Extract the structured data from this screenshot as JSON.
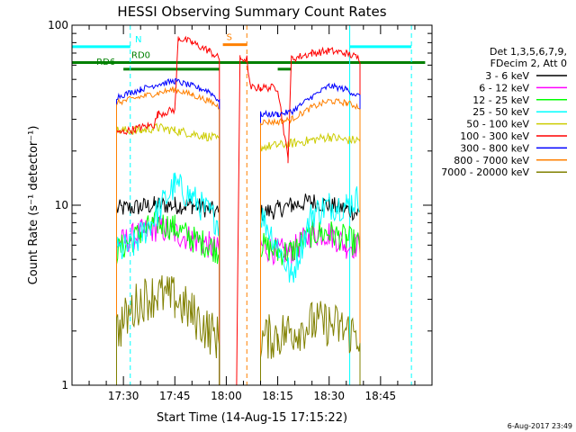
{
  "chart_data": {
    "type": "line",
    "title": "HESSI Observing Summary Count Rates",
    "xlabel": "Start Time (14-Aug-15 17:15:22)",
    "ylabel": "Count Rate (s⁻¹ detector⁻¹)",
    "y_scale": "log",
    "ylim": [
      1,
      100
    ],
    "xlim_minutes_after_17_15": [
      0,
      105
    ],
    "x_tick_labels": [
      "17:30",
      "17:45",
      "18:00",
      "18:15",
      "18:30",
      "18:45"
    ],
    "x_tick_minutes_after_17_15": [
      15,
      30,
      45,
      60,
      75,
      90
    ],
    "y_tick_labels": [
      "1",
      "10",
      "100"
    ],
    "grid": false,
    "legend": {
      "placement": "right",
      "header": [
        "Det 1,3,5,6,7,9,",
        "FDecim 2, Att 0"
      ],
      "entries": [
        {
          "label": "3 - 6 keV",
          "color": "#000000"
        },
        {
          "label": "6 - 12 keV",
          "color": "#ff00ff"
        },
        {
          "label": "12 - 25 keV",
          "color": "#00ff00"
        },
        {
          "label": "25 - 50 keV",
          "color": "#00ffff"
        },
        {
          "label": "50 - 100 keV",
          "color": "#cccc00"
        },
        {
          "label": "100 - 300 keV",
          "color": "#ff0000"
        },
        {
          "label": "300 - 800 keV",
          "color": "#0000ff"
        },
        {
          "label": "800 - 7000 keV",
          "color": "#ff8000"
        },
        {
          "label": "7000 - 20000 keV",
          "color": "#808000"
        }
      ]
    },
    "flags": [
      {
        "label": "N",
        "color": "#00ffff",
        "level": 76,
        "segments": [
          [
            0,
            17
          ],
          [
            81,
            99
          ]
        ]
      },
      {
        "label": "S",
        "color": "#ff8000",
        "level": 78,
        "segments": [
          [
            44,
            51
          ]
        ]
      },
      {
        "label": "RD0",
        "color": "#008000",
        "level": 62,
        "segments": [
          [
            0,
            103
          ]
        ]
      },
      {
        "label": "RD6",
        "color": "#008000",
        "level": 57,
        "segments": [
          [
            15,
            43
          ],
          [
            60,
            64
          ]
        ]
      }
    ],
    "vertical_markers": [
      {
        "minute": 17,
        "color": "#00ffff",
        "style": "dashed"
      },
      {
        "minute": 51,
        "color": "#ff8000",
        "style": "dashed"
      },
      {
        "minute": 81,
        "color": "#00ffff",
        "style": "solid"
      },
      {
        "minute": 99,
        "color": "#00ffff",
        "style": "dashed"
      }
    ],
    "series": [
      {
        "name": "3 - 6 keV",
        "color": "#000000",
        "noise": 0.12,
        "segments": [
          {
            "x": [
              13,
              20,
              24,
              30,
              35,
              40,
              43
            ],
            "y": [
              9.5,
              9.8,
              10,
              10,
              10,
              9.5,
              9
            ]
          },
          {
            "x": [
              55,
              60,
              64,
              70,
              75,
              80,
              84
            ],
            "y": [
              9,
              9.5,
              10,
              10.5,
              10,
              9.5,
              9
            ]
          }
        ]
      },
      {
        "name": "6 - 12 keV",
        "color": "#ff00ff",
        "noise": 0.18,
        "segments": [
          {
            "x": [
              13,
              20,
              25,
              30,
              35,
              40,
              43
            ],
            "y": [
              6,
              7,
              7.5,
              7,
              6.5,
              6,
              5.5
            ]
          },
          {
            "x": [
              55,
              60,
              64,
              70,
              75,
              80,
              84
            ],
            "y": [
              6,
              5.5,
              5.5,
              7,
              7,
              6,
              6
            ]
          }
        ]
      },
      {
        "name": "12 - 25 keV",
        "color": "#00ff00",
        "noise": 0.18,
        "segments": [
          {
            "x": [
              13,
              20,
              25,
              30,
              35,
              40,
              43
            ],
            "y": [
              5.5,
              7,
              8,
              7.5,
              6.5,
              6,
              5.5
            ]
          },
          {
            "x": [
              55,
              60,
              64,
              70,
              75,
              80,
              84
            ],
            "y": [
              6,
              5.5,
              5.5,
              7,
              7,
              6.5,
              6
            ]
          }
        ]
      },
      {
        "name": "25 - 50 keV",
        "color": "#00ffff",
        "noise": 0.2,
        "segments": [
          {
            "x": [
              13,
              18,
              23,
              30,
              35,
              40,
              43
            ],
            "y": [
              5.5,
              6,
              8,
              13,
              11,
              9,
              8
            ]
          },
          {
            "x": [
              55,
              60,
              64,
              70,
              75,
              80,
              84
            ],
            "y": [
              9,
              6,
              4,
              9,
              10,
              10,
              11
            ]
          }
        ]
      },
      {
        "name": "50 - 100 keV",
        "color": "#cccc00",
        "noise": 0.06,
        "segments": [
          {
            "x": [
              13,
              20,
              25,
              30,
              35,
              40,
              43
            ],
            "y": [
              26,
              26,
              27,
              26,
              25,
              24,
              23
            ]
          },
          {
            "x": [
              55,
              60,
              64,
              70,
              75,
              80,
              84
            ],
            "y": [
              21,
              21.5,
              22,
              23,
              24,
              23,
              23
            ]
          }
        ]
      },
      {
        "name": "100 - 300 keV",
        "color": "#ff0000",
        "noise": 0.05,
        "segments": [
          {
            "x": [
              13,
              20,
              24,
              25,
              30,
              31,
              35,
              40,
              43
            ],
            "y": [
              25,
              27,
              28,
              32,
              34,
              85,
              80,
              72,
              65
            ]
          },
          {
            "x": [
              48,
              49,
              51,
              52,
              55,
              60,
              63,
              64,
              70,
              75,
              80,
              84
            ],
            "y": [
              1,
              65,
              65,
              45,
              45,
              45,
              18,
              65,
              70,
              72,
              70,
              65
            ]
          }
        ]
      },
      {
        "name": "300 - 800 keV",
        "color": "#0000ff",
        "noise": 0.04,
        "segments": [
          {
            "x": [
              13,
              20,
              25,
              30,
              35,
              40,
              43
            ],
            "y": [
              40,
              44,
              47,
              49,
              46,
              43,
              38
            ]
          },
          {
            "x": [
              55,
              60,
              64,
              70,
              75,
              80,
              84
            ],
            "y": [
              32,
              32,
              33,
              40,
              46,
              44,
              40
            ]
          }
        ]
      },
      {
        "name": "800 - 7000 keV",
        "color": "#ff8000",
        "noise": 0.04,
        "segments": [
          {
            "x": [
              13,
              20,
              25,
              30,
              35,
              40,
              43
            ],
            "y": [
              37,
              40,
              42,
              44,
              41,
              38,
              35
            ]
          },
          {
            "x": [
              55,
              60,
              64,
              70,
              75,
              80,
              84
            ],
            "y": [
              29,
              29,
              30,
              35,
              38,
              37,
              35
            ]
          }
        ]
      },
      {
        "name": "7000 - 20000 keV",
        "color": "#808000",
        "noise": 0.3,
        "segments": [
          {
            "x": [
              13,
              20,
              25,
              30,
              35,
              40,
              43
            ],
            "y": [
              2,
              3,
              3.2,
              3,
              2.5,
              2,
              1.8
            ]
          },
          {
            "x": [
              55,
              60,
              64,
              70,
              75,
              80,
              84
            ],
            "y": [
              1.8,
              1.9,
              2,
              2.2,
              2.2,
              2,
              1.9
            ]
          }
        ]
      }
    ]
  },
  "footer_date": "6-Aug-2017 23:49"
}
